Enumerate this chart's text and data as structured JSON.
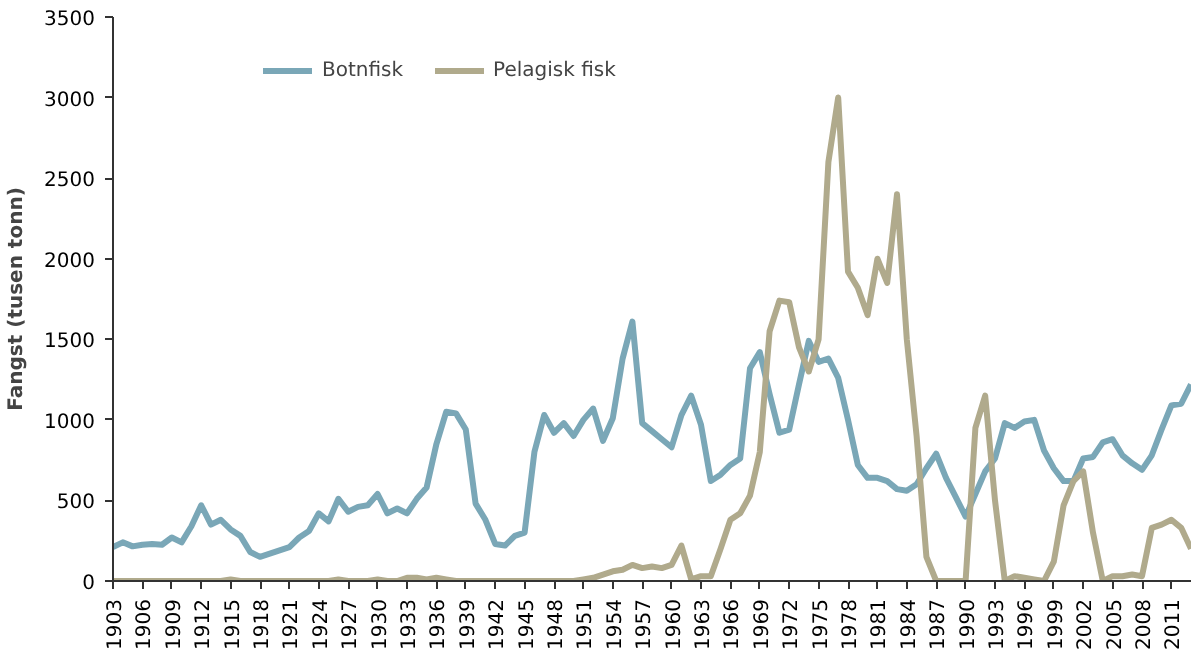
{
  "chart_data": {
    "type": "line",
    "ylabel": "Fangst (tusen tonn)",
    "x": [
      1903,
      1904,
      1905,
      1906,
      1907,
      1908,
      1909,
      1910,
      1911,
      1912,
      1913,
      1914,
      1915,
      1916,
      1917,
      1918,
      1919,
      1920,
      1921,
      1922,
      1923,
      1924,
      1925,
      1926,
      1927,
      1928,
      1929,
      1930,
      1931,
      1932,
      1933,
      1934,
      1935,
      1936,
      1937,
      1938,
      1939,
      1940,
      1941,
      1942,
      1943,
      1944,
      1945,
      1946,
      1947,
      1948,
      1949,
      1950,
      1951,
      1952,
      1953,
      1954,
      1955,
      1956,
      1957,
      1958,
      1959,
      1960,
      1961,
      1962,
      1963,
      1964,
      1965,
      1966,
      1967,
      1968,
      1969,
      1970,
      1971,
      1972,
      1973,
      1974,
      1975,
      1976,
      1977,
      1978,
      1979,
      1980,
      1981,
      1982,
      1983,
      1984,
      1985,
      1986,
      1987,
      1988,
      1989,
      1990,
      1991,
      1992,
      1993,
      1994,
      1995,
      1996,
      1997,
      1998,
      1999,
      2000,
      2001,
      2002,
      2003,
      2004,
      2005,
      2006,
      2007,
      2008,
      2009,
      2010,
      2011,
      2012,
      2013
    ],
    "series": [
      {
        "name": "Botnfisk",
        "color": "#7aa7b7",
        "values": [
          210,
          240,
          215,
          225,
          230,
          225,
          270,
          240,
          340,
          470,
          350,
          380,
          320,
          280,
          180,
          150,
          170,
          190,
          210,
          270,
          310,
          420,
          370,
          510,
          430,
          460,
          470,
          540,
          420,
          450,
          420,
          510,
          580,
          850,
          1050,
          1040,
          940,
          480,
          380,
          230,
          220,
          280,
          300,
          800,
          1030,
          920,
          980,
          900,
          1000,
          1070,
          870,
          1010,
          1380,
          1610,
          980,
          930,
          880,
          830,
          1030,
          1150,
          970,
          620,
          660,
          720,
          760,
          1320,
          1420,
          1160,
          920,
          940,
          1220,
          1490,
          1360,
          1380,
          1260,
          1000,
          720,
          640,
          640,
          620,
          570,
          560,
          600,
          700,
          790,
          640,
          520,
          400,
          540,
          680,
          760,
          980,
          950,
          990,
          1000,
          810,
          700,
          620,
          620,
          760,
          770,
          860,
          880,
          780,
          730,
          690,
          780,
          940,
          1090,
          1100,
          1220
        ]
      },
      {
        "name": "Pelagisk fisk",
        "color": "#b0aa8c",
        "values": [
          0,
          0,
          0,
          0,
          0,
          0,
          0,
          0,
          0,
          0,
          0,
          0,
          10,
          0,
          0,
          0,
          0,
          0,
          0,
          0,
          0,
          0,
          0,
          10,
          0,
          0,
          0,
          10,
          0,
          0,
          20,
          20,
          10,
          20,
          10,
          0,
          0,
          0,
          0,
          0,
          0,
          0,
          0,
          0,
          0,
          0,
          0,
          0,
          10,
          20,
          40,
          60,
          70,
          100,
          80,
          90,
          80,
          100,
          220,
          10,
          30,
          30,
          200,
          380,
          420,
          530,
          800,
          1550,
          1740,
          1730,
          1450,
          1300,
          1500,
          2600,
          3000,
          1920,
          1820,
          1650,
          2000,
          1850,
          2400,
          1500,
          900,
          150,
          0,
          0,
          0,
          0,
          950,
          1150,
          500,
          0,
          30,
          20,
          10,
          0,
          120,
          470,
          620,
          680,
          300,
          0,
          30,
          30,
          40,
          30,
          330,
          350,
          380,
          330,
          200
        ]
      }
    ],
    "xlim": [
      1903,
      2013
    ],
    "xticks": [
      1903,
      1906,
      1909,
      1912,
      1915,
      1918,
      1921,
      1924,
      1927,
      1930,
      1933,
      1936,
      1939,
      1942,
      1945,
      1948,
      1951,
      1954,
      1957,
      1960,
      1963,
      1966,
      1969,
      1972,
      1975,
      1978,
      1981,
      1984,
      1987,
      1990,
      1993,
      1996,
      1999,
      2002,
      2005,
      2008,
      2011
    ],
    "ylim": [
      0,
      3500
    ],
    "yticks": [
      0,
      500,
      1000,
      1500,
      2000,
      2500,
      3000,
      3500
    ],
    "legend": "top left",
    "grid": false
  }
}
